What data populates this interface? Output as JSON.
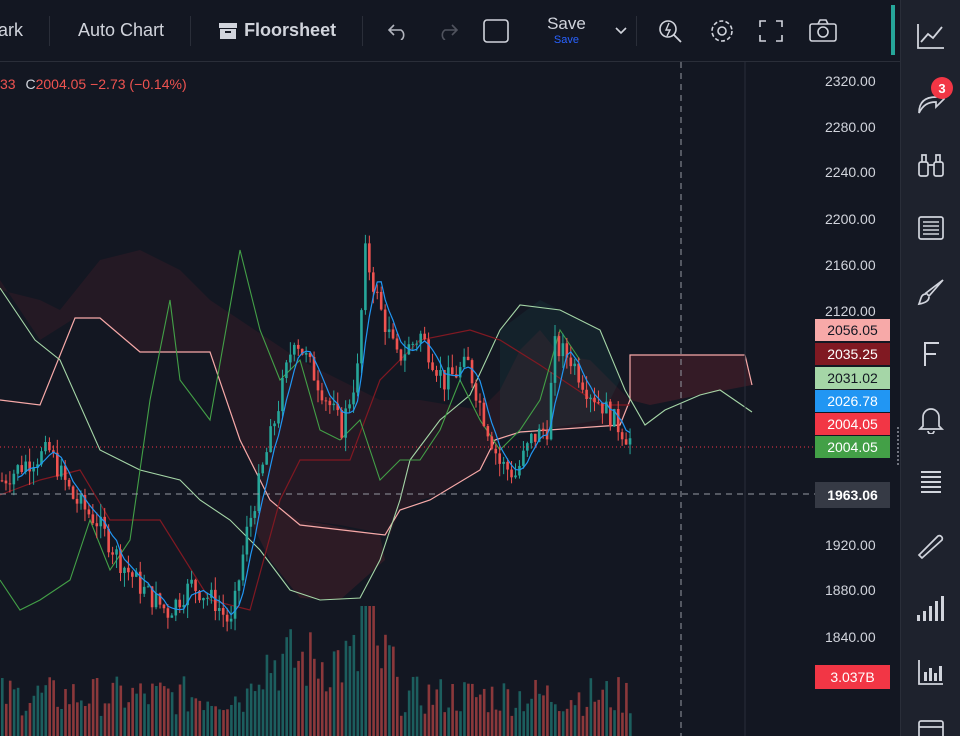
{
  "toolbar": {
    "mark_label": "ark",
    "auto_chart_label": "Auto Chart",
    "floorsheet_label": "Floorsheet",
    "save_label": "Save",
    "save_sublabel": "Save"
  },
  "legend": {
    "prev_fragment": "33",
    "close_label": "C",
    "close_value": "2004.05",
    "change": "−2.73",
    "change_pct": "(−0.14%)"
  },
  "price_axis": {
    "ticks": [
      "2320.00",
      "2280.00",
      "2240.00",
      "2200.00",
      "2160.00",
      "2120.00",
      "1920.00",
      "1880.00",
      "1840.00"
    ],
    "labels": [
      {
        "value": "2056.05",
        "bg": "#f7a9a8",
        "fg": "#131722"
      },
      {
        "value": "2035.25",
        "bg": "#801922",
        "fg": "#ffffff"
      },
      {
        "value": "2031.02",
        "bg": "#a5d6a7",
        "fg": "#131722"
      },
      {
        "value": "2026.78",
        "bg": "#2196f3",
        "fg": "#ffffff"
      },
      {
        "value": "2004.05",
        "bg": "#f23645",
        "fg": "#ffffff"
      },
      {
        "value": "2004.05",
        "bg": "#43a047",
        "fg": "#ffffff"
      },
      {
        "value": "1963.06",
        "bg": "#363a45",
        "fg": "#ffffff"
      }
    ],
    "volume_label": {
      "value": "3.037B",
      "bg": "#f23645",
      "fg": "#ffffff"
    }
  },
  "right_toolbar": {
    "items": [
      "chart-icon",
      "share-icon",
      "binoculars-icon",
      "news-icon",
      "brush-icon",
      "f-icon",
      "bell-icon",
      "list-icon",
      "pen-icon",
      "signal-icon",
      "bar-chart-icon",
      "window-icon"
    ],
    "badge_count": "3"
  },
  "colors": {
    "background": "#131722",
    "up": "#26a69a",
    "down": "#ef5350",
    "accent": "#2962ff"
  }
}
